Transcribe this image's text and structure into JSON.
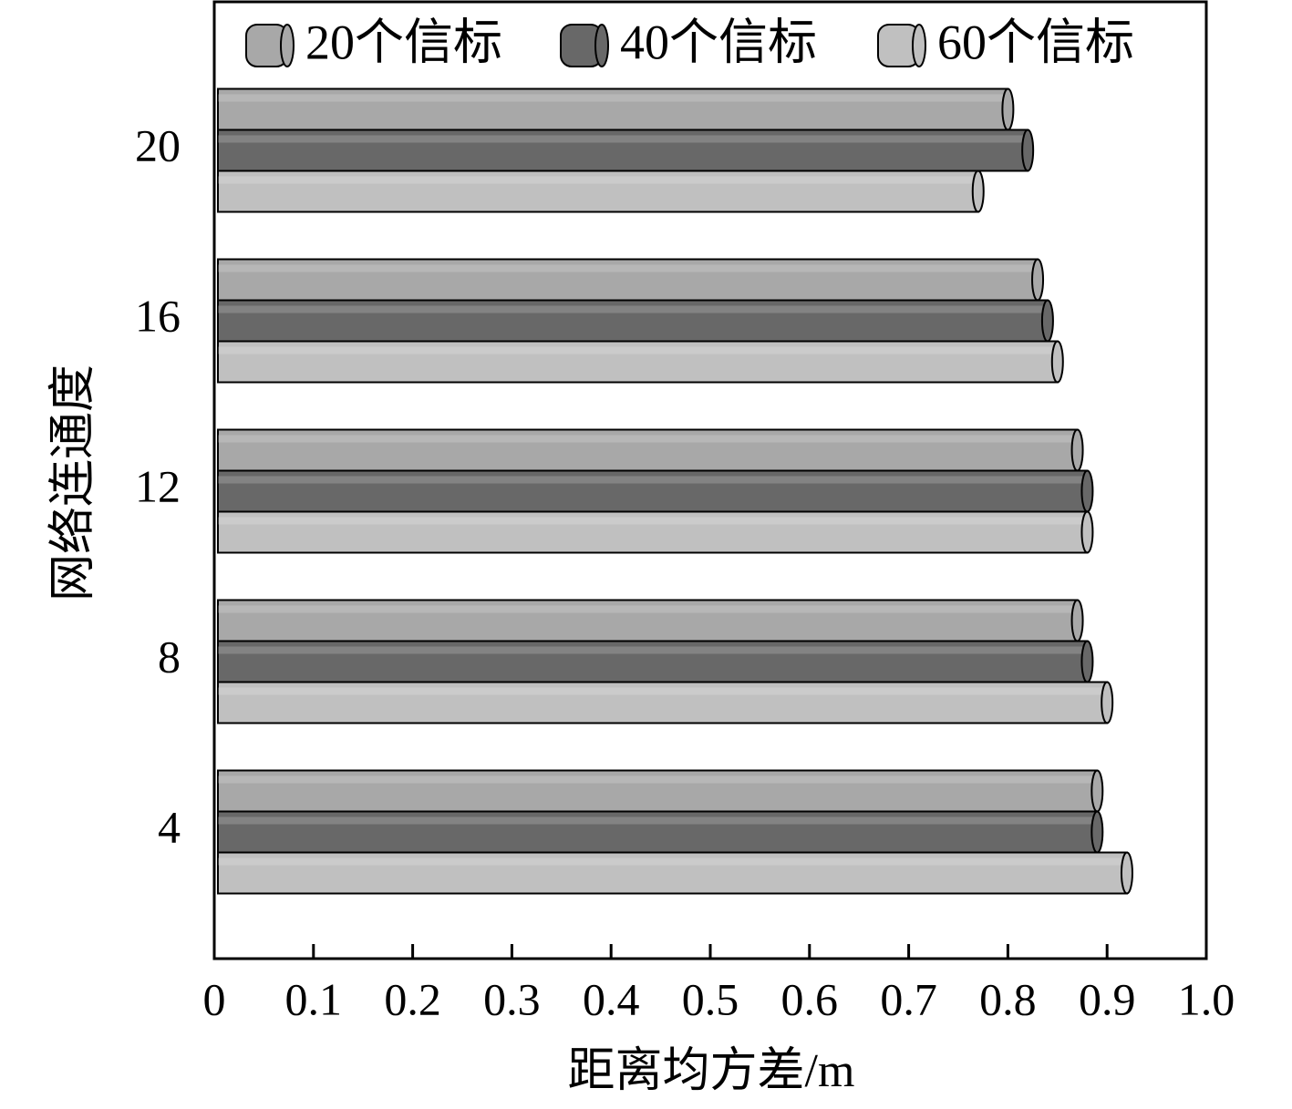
{
  "chart_data": {
    "type": "bar",
    "orientation": "horizontal",
    "x_label": "距离均方差/m",
    "y_label": "网络连通度",
    "categories": [
      "4",
      "8",
      "12",
      "16",
      "20"
    ],
    "series": [
      {
        "name": "20个信标",
        "color": "#a8a8a8",
        "values": [
          0.89,
          0.87,
          0.87,
          0.83,
          0.8
        ]
      },
      {
        "name": "40个信标",
        "color": "#686868",
        "values": [
          0.89,
          0.88,
          0.88,
          0.84,
          0.82
        ]
      },
      {
        "name": "60个信标",
        "color": "#c0c0c0",
        "values": [
          0.92,
          0.9,
          0.88,
          0.85,
          0.77
        ]
      }
    ],
    "xlim": [
      0,
      1
    ],
    "xticks": [
      0,
      0.1,
      0.2,
      0.3,
      0.4,
      0.5,
      0.6,
      0.7,
      0.8,
      0.9,
      {
        "value": 1,
        "label": "1.0"
      }
    ],
    "legend": "top"
  }
}
